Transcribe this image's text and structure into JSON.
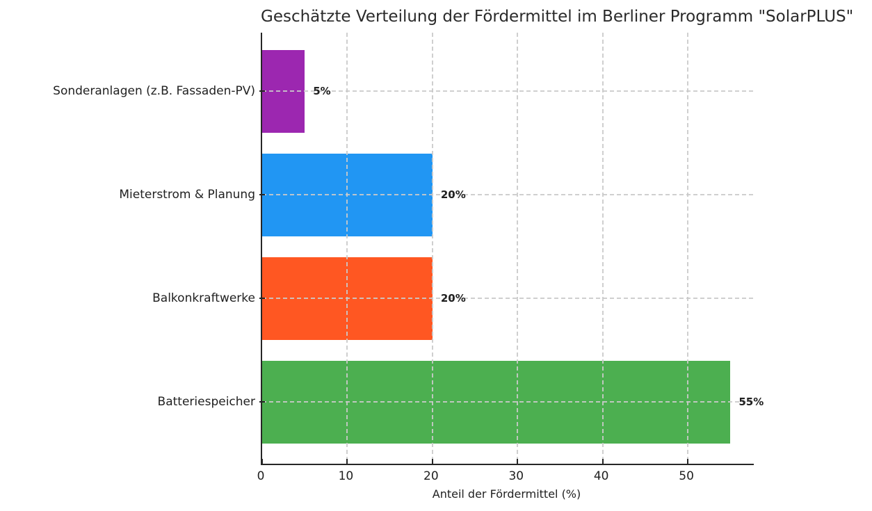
{
  "chart_data": {
    "type": "bar",
    "orientation": "horizontal",
    "title": "Geschätzte Verteilung der Fördermittel im Berliner Programm \"SolarPLUS\"",
    "xlabel": "Anteil der Fördermittel (%)",
    "ylabel": "",
    "categories": [
      "Sonderanlagen (z.B. Fassaden-PV)",
      "Mieterstrom & Planung",
      "Balkonkraftwerke",
      "Batteriespeicher"
    ],
    "values": [
      5,
      20,
      20,
      55
    ],
    "value_labels": [
      "5%",
      "20%",
      "20%",
      "55%"
    ],
    "bar_colors": [
      "#9c27b0",
      "#2196f3",
      "#ff5722",
      "#4caf50"
    ],
    "x_ticks": [
      0,
      10,
      20,
      30,
      40,
      50
    ],
    "xlim": [
      0,
      57.75
    ],
    "grid": "dashed, vertical and horizontal, drawn over bars",
    "legend": "none",
    "text_color": "#212121",
    "spine_color": "#262626",
    "background_color": "#ffffff"
  }
}
